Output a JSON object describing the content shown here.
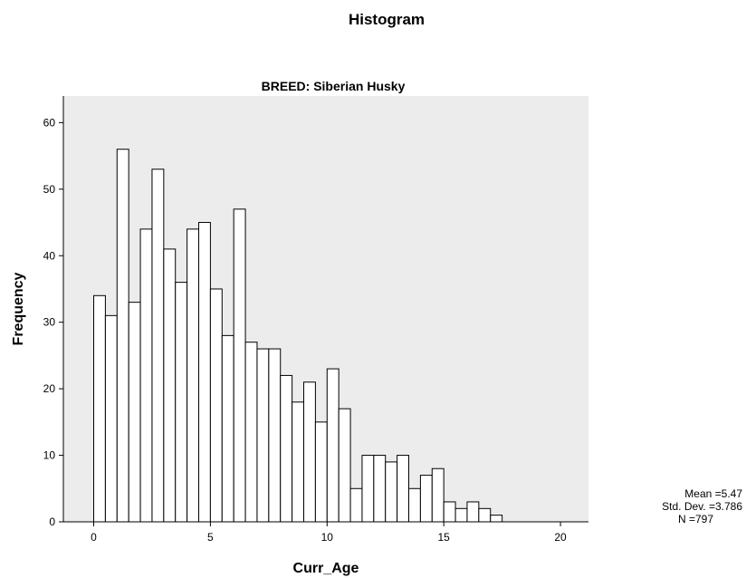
{
  "chart_data": {
    "type": "bar",
    "title": "Histogram",
    "subtitle": "BREED: Siberian Husky",
    "xlabel": "Curr_Age",
    "ylabel": "Frequency",
    "bin_width": 0.5,
    "bin_start": 0,
    "values": [
      34,
      31,
      56,
      33,
      44,
      53,
      41,
      36,
      44,
      45,
      35,
      28,
      47,
      27,
      26,
      26,
      22,
      18,
      21,
      15,
      23,
      17,
      5,
      10,
      10,
      9,
      10,
      5,
      7,
      8,
      3,
      2,
      3,
      2,
      1
    ],
    "xlim": [
      -1.3,
      21.2
    ],
    "ylim": [
      0,
      64
    ],
    "xticks": [
      "0",
      "5",
      "10",
      "15",
      "20"
    ],
    "yticks": [
      "0",
      "10",
      "20",
      "30",
      "40",
      "50",
      "60"
    ],
    "grid": false,
    "plot_background": "#ececec",
    "bar_fill": "#ffffff",
    "bar_stroke": "#000000",
    "stats": {
      "mean": "Mean =5.47",
      "std_dev": "Std. Dev. =3.786",
      "n": "N =797"
    }
  }
}
